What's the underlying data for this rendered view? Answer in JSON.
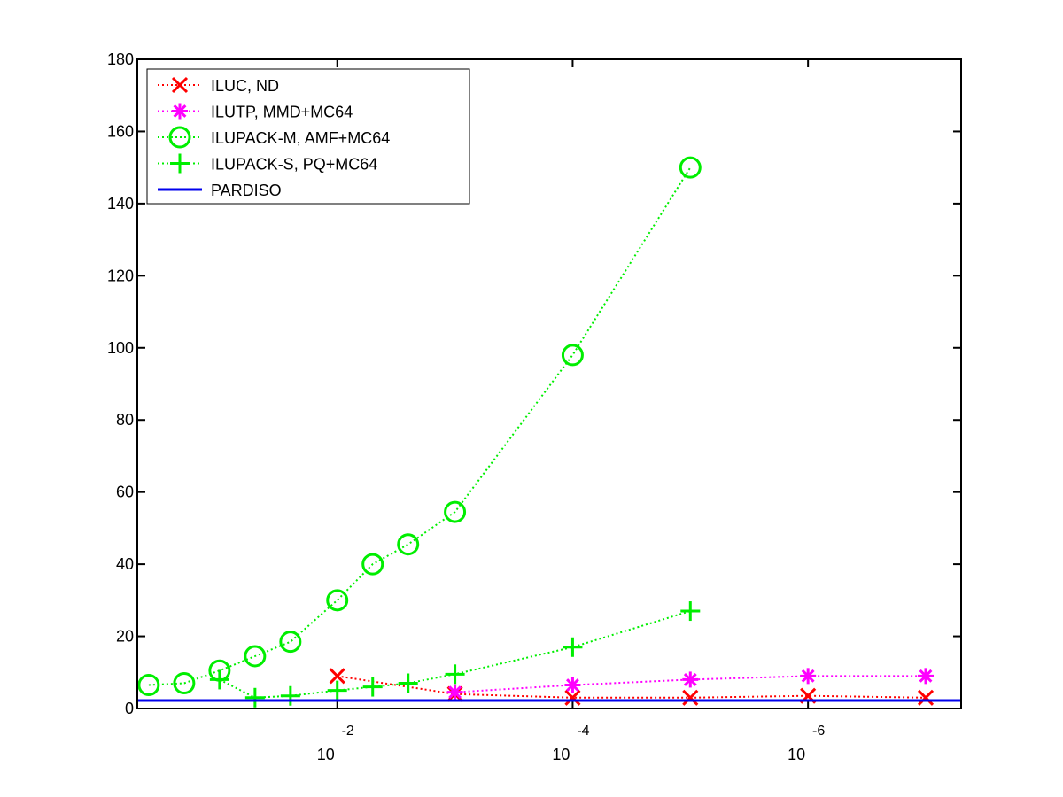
{
  "chart_data": {
    "type": "line",
    "title": "",
    "xlabel": "",
    "ylabel": "",
    "x_scale": "log-reversed",
    "xlim": [
      0.5,
      5e-08
    ],
    "ylim": [
      0,
      180
    ],
    "grid": false,
    "legend_position": "top-left",
    "y_ticks": [
      0,
      20,
      40,
      60,
      80,
      100,
      120,
      140,
      160,
      180
    ],
    "x_ticks": [
      {
        "value": 0.01,
        "base": "10",
        "exponent": "-2"
      },
      {
        "value": 0.0001,
        "base": "10",
        "exponent": "-4"
      },
      {
        "value": 1e-06,
        "base": "10",
        "exponent": "-6"
      }
    ],
    "series": [
      {
        "name": "ILUC,  ND",
        "color": "#ff0000",
        "marker": "x",
        "x": [
          0.01,
          0.001,
          0.0001,
          1e-05,
          1e-06,
          1e-07
        ],
        "y": [
          9,
          4,
          3,
          3,
          3.5,
          3
        ]
      },
      {
        "name": "ILUTP, MMD+MC64",
        "color": "#ff00ff",
        "marker": "asterisk",
        "x": [
          0.001,
          0.0001,
          1e-05,
          1e-06,
          1e-07
        ],
        "y": [
          4.5,
          6.5,
          8,
          9,
          9
        ]
      },
      {
        "name": "ILUPACK-M, AMF+MC64",
        "color": "#00ee00",
        "marker": "circle",
        "x": [
          0.4,
          0.2,
          0.1,
          0.05,
          0.025,
          0.01,
          0.005,
          0.0025,
          0.001,
          0.0001,
          1e-05
        ],
        "y": [
          6.5,
          7,
          10.5,
          14.5,
          18.5,
          30,
          40,
          45.5,
          54.5,
          98,
          150
        ]
      },
      {
        "name": "ILUPACK-S, PQ+MC64",
        "color": "#00ee00",
        "marker": "plus",
        "x": [
          0.1,
          0.05,
          0.025,
          0.01,
          0.005,
          0.0025,
          0.001,
          0.0001,
          1e-05
        ],
        "y": [
          8,
          3,
          3.5,
          5,
          6,
          7,
          9.5,
          17,
          27
        ]
      },
      {
        "name": "PARDISO",
        "color": "#0000ee",
        "marker": "none",
        "x": [
          0.5,
          5e-08
        ],
        "y": [
          2.2,
          2.2
        ]
      }
    ]
  }
}
